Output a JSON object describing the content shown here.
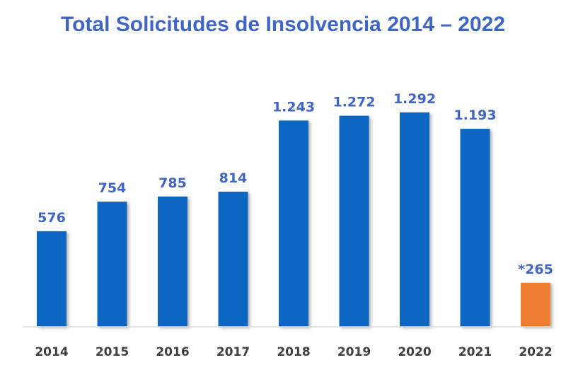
{
  "chart_data": {
    "type": "bar",
    "title": "Total Solicitudes de Insolvencia 2014 – 2022",
    "xlabel": "",
    "ylabel": "",
    "categories": [
      "2014",
      "2015",
      "2016",
      "2017",
      "2018",
      "2019",
      "2020",
      "2021",
      "2022"
    ],
    "values": [
      576,
      754,
      785,
      814,
      1243,
      1272,
      1292,
      1193,
      265
    ],
    "data_labels": [
      "576",
      "754",
      "785",
      "814",
      "1.243",
      "1.272",
      "1.292",
      "1.193",
      "*265"
    ],
    "ylim": [
      0,
      1300
    ],
    "grid": false,
    "legend": "none",
    "colors": {
      "bar": "#0e66c2",
      "highlight_bar": "#ee7d31",
      "label": "#3f66c4",
      "tick": "#404040",
      "axis": "#d9d9d9"
    },
    "highlight_index": 8
  }
}
